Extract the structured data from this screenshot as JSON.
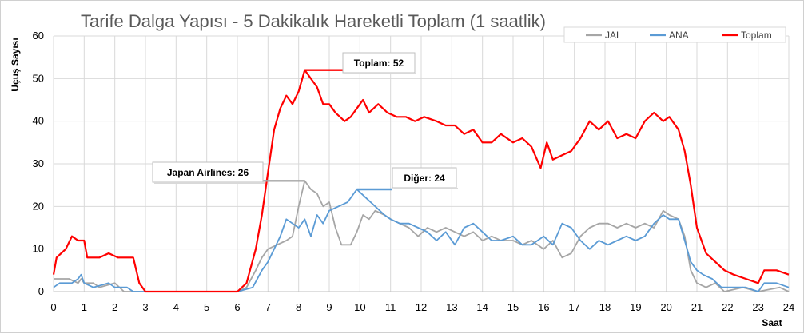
{
  "chart_data": {
    "type": "line",
    "title": "Tarife Dalga Yapısı - 5 Dakikalık Hareketli Toplam (1 saatlik)",
    "xlabel": "Saat",
    "ylabel": "Uçuş Sayısı",
    "xlim": [
      0,
      24
    ],
    "ylim": [
      0,
      60
    ],
    "x_ticks": [
      "0",
      "1",
      "2",
      "3",
      "4",
      "5",
      "6",
      "7",
      "8",
      "9",
      "10",
      "11",
      "12",
      "13",
      "14",
      "15",
      "16",
      "17",
      "18",
      "19",
      "20",
      "21",
      "22",
      "23",
      "24"
    ],
    "y_ticks": [
      "0",
      "10",
      "20",
      "30",
      "40",
      "50",
      "60"
    ],
    "grid": true,
    "legend_position": "top-right",
    "series": [
      {
        "name": "JAL",
        "color": "#a6a6a6",
        "points": [
          [
            0,
            3
          ],
          [
            0.5,
            3
          ],
          [
            0.8,
            2
          ],
          [
            0.9,
            3
          ],
          [
            1.0,
            2
          ],
          [
            1.3,
            2
          ],
          [
            1.5,
            1
          ],
          [
            2.0,
            2
          ],
          [
            2.3,
            0
          ],
          [
            3,
            0
          ],
          [
            6,
            0
          ],
          [
            6.3,
            1
          ],
          [
            6.6,
            5
          ],
          [
            6.8,
            8
          ],
          [
            7.0,
            10
          ],
          [
            7.3,
            11
          ],
          [
            7.6,
            12
          ],
          [
            7.8,
            13
          ],
          [
            8.0,
            20
          ],
          [
            8.2,
            26
          ],
          [
            8.4,
            24
          ],
          [
            8.6,
            23
          ],
          [
            8.8,
            20
          ],
          [
            9.0,
            21
          ],
          [
            9.2,
            15
          ],
          [
            9.4,
            11
          ],
          [
            9.7,
            11
          ],
          [
            9.9,
            14
          ],
          [
            10.1,
            18
          ],
          [
            10.3,
            17
          ],
          [
            10.5,
            19
          ],
          [
            10.8,
            18
          ],
          [
            11.0,
            17
          ],
          [
            11.3,
            16
          ],
          [
            11.6,
            15
          ],
          [
            11.9,
            13
          ],
          [
            12.2,
            15
          ],
          [
            12.5,
            14
          ],
          [
            12.8,
            15
          ],
          [
            13.1,
            14
          ],
          [
            13.4,
            13
          ],
          [
            13.7,
            14
          ],
          [
            14.0,
            12
          ],
          [
            14.3,
            13
          ],
          [
            14.6,
            12
          ],
          [
            15.0,
            12
          ],
          [
            15.3,
            11
          ],
          [
            15.6,
            12
          ],
          [
            16.0,
            10
          ],
          [
            16.3,
            12
          ],
          [
            16.6,
            8
          ],
          [
            16.9,
            9
          ],
          [
            17.2,
            13
          ],
          [
            17.5,
            15
          ],
          [
            17.8,
            16
          ],
          [
            18.1,
            16
          ],
          [
            18.4,
            15
          ],
          [
            18.7,
            16
          ],
          [
            19.0,
            15
          ],
          [
            19.3,
            16
          ],
          [
            19.6,
            15
          ],
          [
            19.9,
            19
          ],
          [
            20.1,
            18
          ],
          [
            20.4,
            17
          ],
          [
            20.6,
            13
          ],
          [
            20.8,
            5
          ],
          [
            21.0,
            2
          ],
          [
            21.3,
            1
          ],
          [
            21.6,
            2
          ],
          [
            21.9,
            0
          ],
          [
            22.5,
            1
          ],
          [
            23,
            0
          ],
          [
            23.7,
            1
          ],
          [
            24,
            0
          ]
        ]
      },
      {
        "name": "ANA",
        "color": "#5b9bd5",
        "points": [
          [
            0,
            1
          ],
          [
            0.2,
            2
          ],
          [
            0.6,
            2
          ],
          [
            0.8,
            3
          ],
          [
            0.9,
            4
          ],
          [
            1.0,
            2
          ],
          [
            1.3,
            1
          ],
          [
            1.8,
            2
          ],
          [
            2.0,
            1
          ],
          [
            2.4,
            1
          ],
          [
            2.6,
            0
          ],
          [
            3,
            0
          ],
          [
            6,
            0
          ],
          [
            6.5,
            1
          ],
          [
            6.8,
            5
          ],
          [
            7.0,
            7
          ],
          [
            7.2,
            10
          ],
          [
            7.4,
            13
          ],
          [
            7.6,
            17
          ],
          [
            7.8,
            16
          ],
          [
            8.0,
            15
          ],
          [
            8.2,
            17
          ],
          [
            8.4,
            13
          ],
          [
            8.6,
            18
          ],
          [
            8.8,
            16
          ],
          [
            9.0,
            19
          ],
          [
            9.3,
            20
          ],
          [
            9.6,
            21
          ],
          [
            9.9,
            24
          ],
          [
            10.2,
            22
          ],
          [
            10.5,
            20
          ],
          [
            10.8,
            18
          ],
          [
            11.0,
            17
          ],
          [
            11.3,
            16
          ],
          [
            11.6,
            16
          ],
          [
            11.9,
            15
          ],
          [
            12.2,
            14
          ],
          [
            12.5,
            12
          ],
          [
            12.8,
            14
          ],
          [
            13.1,
            11
          ],
          [
            13.4,
            15
          ],
          [
            13.7,
            16
          ],
          [
            14.0,
            14
          ],
          [
            14.3,
            12
          ],
          [
            14.6,
            12
          ],
          [
            15.0,
            13
          ],
          [
            15.3,
            11
          ],
          [
            15.6,
            11
          ],
          [
            16.0,
            13
          ],
          [
            16.3,
            11
          ],
          [
            16.6,
            16
          ],
          [
            16.9,
            15
          ],
          [
            17.2,
            12
          ],
          [
            17.5,
            10
          ],
          [
            17.8,
            12
          ],
          [
            18.1,
            11
          ],
          [
            18.4,
            12
          ],
          [
            18.7,
            13
          ],
          [
            19.0,
            12
          ],
          [
            19.3,
            13
          ],
          [
            19.6,
            16
          ],
          [
            19.9,
            18
          ],
          [
            20.1,
            17
          ],
          [
            20.4,
            17
          ],
          [
            20.6,
            12
          ],
          [
            20.8,
            7
          ],
          [
            21.0,
            5
          ],
          [
            21.2,
            4
          ],
          [
            21.5,
            3
          ],
          [
            21.8,
            1
          ],
          [
            22.2,
            1
          ],
          [
            22.6,
            1
          ],
          [
            23.0,
            0
          ],
          [
            23.2,
            2
          ],
          [
            23.6,
            2
          ],
          [
            24,
            1
          ]
        ]
      },
      {
        "name": "Toplam",
        "color": "#ff0000",
        "points": [
          [
            0,
            4
          ],
          [
            0.1,
            8
          ],
          [
            0.4,
            10
          ],
          [
            0.6,
            13
          ],
          [
            0.8,
            12
          ],
          [
            1.0,
            12
          ],
          [
            1.1,
            8
          ],
          [
            1.5,
            8
          ],
          [
            1.8,
            9
          ],
          [
            2.1,
            8
          ],
          [
            2.6,
            8
          ],
          [
            2.8,
            2
          ],
          [
            3.0,
            0
          ],
          [
            6,
            0
          ],
          [
            6.3,
            2
          ],
          [
            6.6,
            10
          ],
          [
            6.8,
            18
          ],
          [
            7.0,
            28
          ],
          [
            7.2,
            38
          ],
          [
            7.4,
            43
          ],
          [
            7.6,
            46
          ],
          [
            7.8,
            44
          ],
          [
            8.0,
            47
          ],
          [
            8.2,
            52
          ],
          [
            8.6,
            48
          ],
          [
            8.8,
            44
          ],
          [
            9.0,
            44
          ],
          [
            9.2,
            42
          ],
          [
            9.5,
            40
          ],
          [
            9.7,
            41
          ],
          [
            9.9,
            43
          ],
          [
            10.1,
            45
          ],
          [
            10.3,
            42
          ],
          [
            10.6,
            44
          ],
          [
            10.9,
            42
          ],
          [
            11.2,
            41
          ],
          [
            11.5,
            41
          ],
          [
            11.8,
            40
          ],
          [
            12.1,
            41
          ],
          [
            12.5,
            40
          ],
          [
            12.8,
            39
          ],
          [
            13.1,
            39
          ],
          [
            13.4,
            37
          ],
          [
            13.7,
            38
          ],
          [
            14.0,
            35
          ],
          [
            14.3,
            35
          ],
          [
            14.6,
            37
          ],
          [
            15.0,
            35
          ],
          [
            15.3,
            36
          ],
          [
            15.6,
            34
          ],
          [
            15.9,
            29
          ],
          [
            16.1,
            35
          ],
          [
            16.3,
            31
          ],
          [
            16.6,
            32
          ],
          [
            16.9,
            33
          ],
          [
            17.2,
            36
          ],
          [
            17.5,
            40
          ],
          [
            17.8,
            38
          ],
          [
            18.1,
            40
          ],
          [
            18.4,
            36
          ],
          [
            18.7,
            37
          ],
          [
            19.0,
            36
          ],
          [
            19.3,
            40
          ],
          [
            19.6,
            42
          ],
          [
            19.9,
            40
          ],
          [
            20.1,
            41
          ],
          [
            20.4,
            38
          ],
          [
            20.6,
            33
          ],
          [
            20.8,
            25
          ],
          [
            21.0,
            15
          ],
          [
            21.3,
            9
          ],
          [
            21.6,
            7
          ],
          [
            21.9,
            5
          ],
          [
            22.2,
            4
          ],
          [
            22.6,
            3
          ],
          [
            23.0,
            2
          ],
          [
            23.2,
            5
          ],
          [
            23.6,
            5
          ],
          [
            24.0,
            4
          ]
        ]
      }
    ],
    "annotations": [
      {
        "text": "Toplam: 52",
        "series": "Toplam",
        "x": 8.2,
        "y": 52
      },
      {
        "text": "Japan Airlines: 26",
        "series": "JAL",
        "x": 8.2,
        "y": 26
      },
      {
        "text": "Diğer: 24",
        "series": "ANA",
        "x": 9.9,
        "y": 24
      }
    ]
  }
}
